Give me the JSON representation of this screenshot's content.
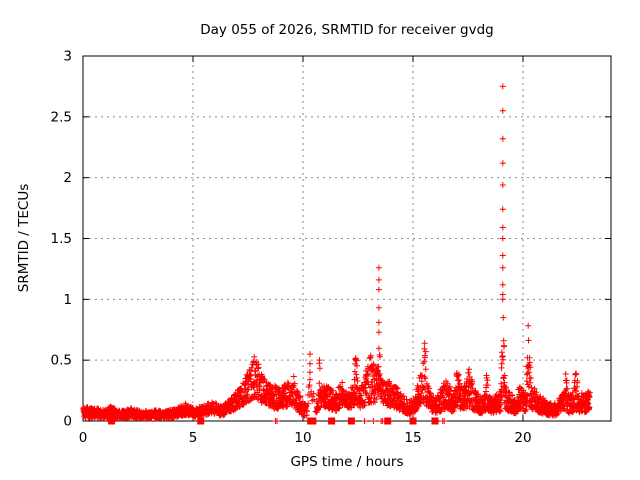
{
  "colors": {
    "background": "#ffffff",
    "frame": "#000000",
    "grid": "#8a8a8a",
    "text": "#000000",
    "marker": "#ff0000"
  },
  "chart_data": {
    "type": "scatter",
    "title": "Day 055 of 2026, SRMTID for receiver gvdg",
    "xlabel": "GPS time / hours",
    "ylabel": "SRMTID / TECUs",
    "xlim": [
      0,
      24
    ],
    "ylim": [
      0,
      3
    ],
    "xticks": [
      0,
      5,
      10,
      15,
      20
    ],
    "xtick_labels": [
      "0",
      "5",
      "10",
      "15",
      "20"
    ],
    "yticks": [
      0,
      0.5,
      1,
      1.5,
      2,
      2.5,
      3
    ],
    "ytick_labels": [
      "0",
      "0.5",
      "1",
      "1.5",
      "2",
      "2.5",
      "3"
    ],
    "grid": "dashed",
    "legend": "none",
    "marker": "plus",
    "marker_color": "#ff0000",
    "x_start": 0.02,
    "x_end": 23.05,
    "step": 0.01,
    "seed": 9,
    "series_envelope": [
      [
        0.0,
        0.02,
        0.12
      ],
      [
        0.5,
        0.03,
        0.11
      ],
      [
        1.0,
        0.02,
        0.09
      ],
      [
        1.3,
        0.03,
        0.13
      ],
      [
        1.7,
        0.02,
        0.08
      ],
      [
        2.2,
        0.03,
        0.11
      ],
      [
        2.7,
        0.02,
        0.08
      ],
      [
        3.2,
        0.02,
        0.09
      ],
      [
        3.7,
        0.02,
        0.08
      ],
      [
        4.2,
        0.03,
        0.1
      ],
      [
        4.7,
        0.05,
        0.15
      ],
      [
        5.1,
        0.03,
        0.1
      ],
      [
        5.5,
        0.05,
        0.13
      ],
      [
        5.9,
        0.06,
        0.16
      ],
      [
        6.3,
        0.04,
        0.12
      ],
      [
        6.7,
        0.07,
        0.18
      ],
      [
        7.0,
        0.1,
        0.24
      ],
      [
        7.3,
        0.13,
        0.32
      ],
      [
        7.6,
        0.17,
        0.45
      ],
      [
        7.85,
        0.2,
        0.56
      ],
      [
        8.1,
        0.15,
        0.4
      ],
      [
        8.4,
        0.13,
        0.33
      ],
      [
        8.7,
        0.1,
        0.3
      ],
      [
        9.0,
        0.1,
        0.26
      ],
      [
        9.3,
        0.12,
        0.33
      ],
      [
        9.48,
        0.12,
        0.3
      ],
      [
        9.55,
        0.15,
        0.5
      ],
      [
        9.65,
        0.1,
        0.28
      ],
      [
        9.95,
        0.05,
        0.18
      ],
      [
        10.15,
        0.04,
        0.14
      ],
      [
        10.35,
        0.1,
        0.4
      ],
      [
        10.55,
        0.05,
        0.16
      ],
      [
        10.68,
        0.08,
        0.2
      ],
      [
        10.75,
        0.15,
        0.62
      ],
      [
        10.85,
        0.12,
        0.3
      ],
      [
        11.2,
        0.1,
        0.28
      ],
      [
        11.5,
        0.08,
        0.24
      ],
      [
        11.8,
        0.13,
        0.33
      ],
      [
        12.1,
        0.1,
        0.28
      ],
      [
        12.32,
        0.12,
        0.3
      ],
      [
        12.4,
        0.18,
        0.63
      ],
      [
        12.5,
        0.1,
        0.28
      ],
      [
        12.75,
        0.12,
        0.3
      ],
      [
        13.05,
        0.15,
        0.58
      ],
      [
        13.25,
        0.15,
        0.45
      ],
      [
        13.38,
        0.18,
        0.45
      ],
      [
        13.45,
        0.25,
        0.72
      ],
      [
        13.55,
        0.15,
        0.4
      ],
      [
        13.9,
        0.12,
        0.33
      ],
      [
        14.2,
        0.1,
        0.3
      ],
      [
        14.5,
        0.08,
        0.22
      ],
      [
        14.8,
        0.05,
        0.16
      ],
      [
        15.1,
        0.08,
        0.22
      ],
      [
        15.35,
        0.12,
        0.45
      ],
      [
        15.48,
        0.15,
        0.5
      ],
      [
        15.55,
        0.18,
        0.73
      ],
      [
        15.65,
        0.1,
        0.3
      ],
      [
        16.0,
        0.06,
        0.18
      ],
      [
        16.3,
        0.08,
        0.28
      ],
      [
        16.55,
        0.1,
        0.35
      ],
      [
        16.8,
        0.07,
        0.22
      ],
      [
        16.95,
        0.1,
        0.3
      ],
      [
        17.05,
        0.18,
        0.7
      ],
      [
        17.15,
        0.1,
        0.3
      ],
      [
        17.4,
        0.1,
        0.28
      ],
      [
        17.55,
        0.12,
        0.45
      ],
      [
        17.65,
        0.1,
        0.35
      ],
      [
        17.85,
        0.08,
        0.25
      ],
      [
        18.1,
        0.06,
        0.2
      ],
      [
        18.28,
        0.08,
        0.25
      ],
      [
        18.35,
        0.1,
        0.4
      ],
      [
        18.45,
        0.07,
        0.22
      ],
      [
        18.7,
        0.06,
        0.2
      ],
      [
        18.9,
        0.08,
        0.25
      ],
      [
        19.0,
        0.08,
        0.25
      ],
      [
        19.08,
        0.25,
        1.12
      ],
      [
        19.18,
        0.1,
        0.3
      ],
      [
        19.45,
        0.07,
        0.22
      ],
      [
        19.7,
        0.06,
        0.2
      ],
      [
        19.85,
        0.1,
        0.3
      ],
      [
        20.05,
        0.08,
        0.25
      ],
      [
        20.15,
        0.08,
        0.25
      ],
      [
        20.25,
        0.12,
        0.9
      ],
      [
        20.38,
        0.1,
        0.32
      ],
      [
        20.6,
        0.08,
        0.25
      ],
      [
        20.85,
        0.06,
        0.2
      ],
      [
        21.1,
        0.05,
        0.16
      ],
      [
        21.4,
        0.04,
        0.14
      ],
      [
        21.7,
        0.06,
        0.2
      ],
      [
        21.88,
        0.08,
        0.25
      ],
      [
        21.95,
        0.12,
        0.52
      ],
      [
        22.05,
        0.06,
        0.22
      ],
      [
        22.25,
        0.07,
        0.24
      ],
      [
        22.4,
        0.08,
        0.42
      ],
      [
        22.55,
        0.07,
        0.25
      ],
      [
        22.75,
        0.06,
        0.22
      ],
      [
        23.05,
        0.1,
        0.25
      ]
    ],
    "outlier_columns": [
      {
        "x": 19.08,
        "ys": [
          2.75,
          2.55,
          2.32,
          2.12,
          1.94,
          1.74,
          1.59,
          1.5,
          1.36,
          1.26,
          1.12,
          1.04
        ]
      },
      {
        "x": 13.45,
        "ys": [
          1.26,
          1.16,
          1.08,
          0.93,
          0.81,
          0.73
        ]
      },
      {
        "x": 10.32,
        "ys": [
          0.55,
          0.47,
          0.4,
          0.34
        ]
      }
    ],
    "axis_squares_x": [
      1.3,
      5.35,
      10.35,
      10.45,
      11.3,
      12.2,
      13.85,
      15.0,
      16.0
    ],
    "axis_plus_x": [
      8.75,
      8.82,
      12.8,
      13.2,
      13.55,
      13.62,
      16.35,
      16.42
    ],
    "sparse_ranges": [
      [
        10.18,
        10.62
      ]
    ]
  }
}
